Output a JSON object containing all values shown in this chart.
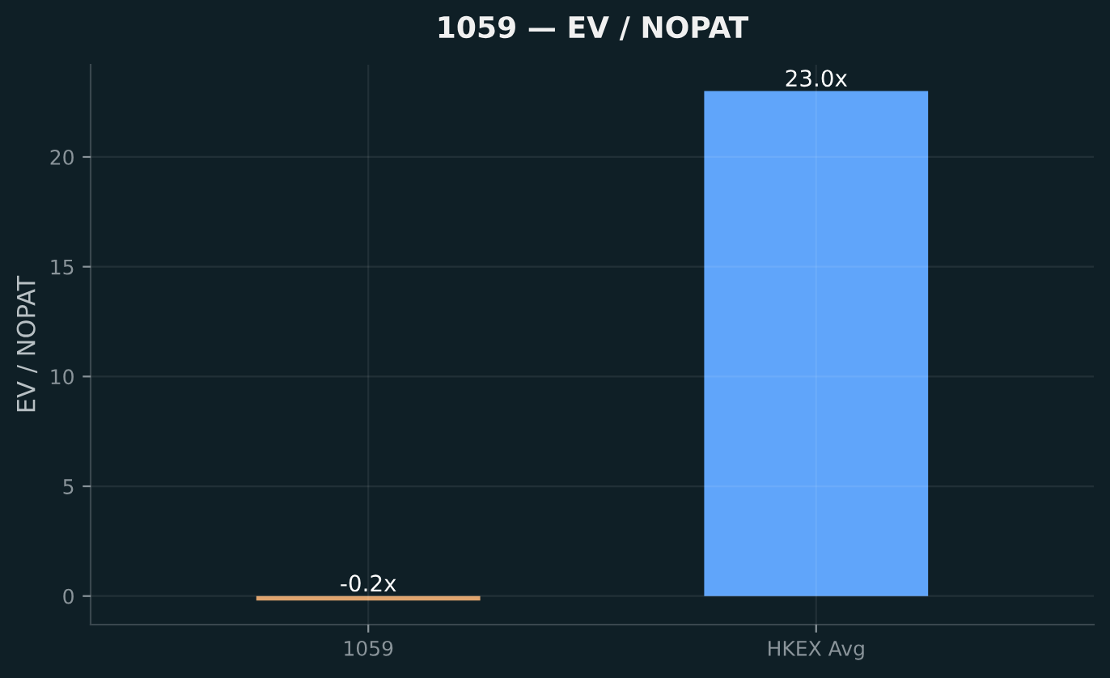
{
  "chart_data": {
    "type": "bar",
    "title": "1059 — EV / NOPAT",
    "ylabel": "EV / NOPAT",
    "categories": [
      "1059",
      "HKEX Avg"
    ],
    "values": [
      -0.2,
      23.0
    ],
    "colors": [
      "#e0a46e",
      "#60a5fa"
    ],
    "value_labels": [
      "-0.2x",
      "23.0x"
    ],
    "ylim": [
      -1.3,
      24.2
    ],
    "yticks": [
      0,
      5,
      10,
      15,
      20
    ],
    "grid": true
  }
}
